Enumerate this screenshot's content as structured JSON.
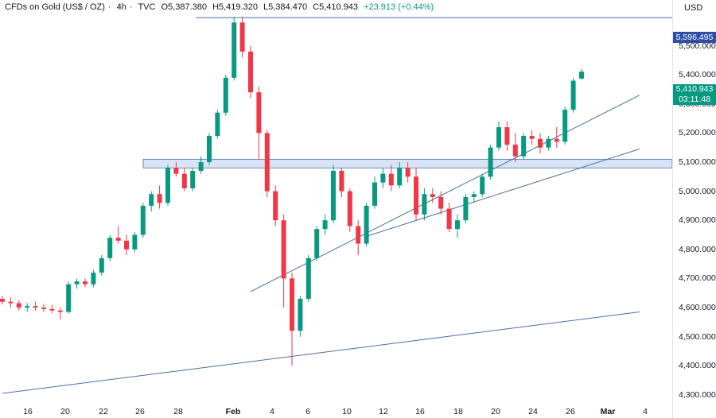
{
  "header": {
    "symbol": "CFDs on Gold (US$ / OZ)",
    "interval": "4h",
    "source": "TVC",
    "open": "O5,387.380",
    "high": "H5,419.320",
    "low": "L5,384.470",
    "close": "C5,410.943",
    "change": "+23.913 (+0.44%)"
  },
  "currency": "USD",
  "colors": {
    "up": "#089981",
    "down": "#f23645",
    "lines": "#4a6fa5",
    "zone": "#cfdcf5",
    "badge_level": "#2f4ea8",
    "badge_price": "#089981"
  },
  "badges": {
    "level_price": "5,596.495",
    "last_price": "5,410.943",
    "countdown": "03:11:48"
  },
  "chart_data": {
    "type": "candlestick",
    "y_ticks": [
      "5,500.000",
      "5,400.000",
      "5,300.000",
      "5,200.000",
      "5,100.000",
      "5,000.000",
      "4,900.000",
      "4,800.000",
      "4,700.000",
      "4,600.000",
      "4,500.000",
      "4,400.000",
      "4,300.000"
    ],
    "ylim": [
      4275,
      5630
    ],
    "x_ticks": [
      "16",
      "20",
      "22",
      "26",
      "28",
      "Feb",
      "4",
      "6",
      "10",
      "12",
      "16",
      "18",
      "20",
      "24",
      "26",
      "Mar",
      "4"
    ],
    "resistance_level": 5596.495,
    "support_zone": [
      5080,
      5110
    ],
    "trendlines": [
      {
        "name": "",
        "from": [
          0,
          4305
        ],
        "to": [
          72,
          4585
        ]
      },
      {
        "name": "",
        "from": [
          30,
          4655
        ],
        "to": [
          72,
          5330
        ]
      },
      {
        "name": "",
        "from": [
          44,
          4845
        ],
        "to": [
          72,
          5145
        ]
      }
    ],
    "candles": [
      [
        4630,
        4640,
        4610,
        4620
      ],
      [
        4620,
        4635,
        4600,
        4615
      ],
      [
        4615,
        4625,
        4590,
        4600
      ],
      [
        4600,
        4615,
        4585,
        4605
      ],
      [
        4605,
        4620,
        4590,
        4600
      ],
      [
        4600,
        4612,
        4585,
        4595
      ],
      [
        4595,
        4610,
        4580,
        4590
      ],
      [
        4590,
        4600,
        4560,
        4585
      ],
      [
        4585,
        4690,
        4580,
        4680
      ],
      [
        4680,
        4700,
        4665,
        4690
      ],
      [
        4690,
        4700,
        4670,
        4680
      ],
      [
        4680,
        4730,
        4670,
        4720
      ],
      [
        4720,
        4780,
        4710,
        4770
      ],
      [
        4770,
        4850,
        4760,
        4840
      ],
      [
        4840,
        4880,
        4820,
        4830
      ],
      [
        4830,
        4850,
        4780,
        4800
      ],
      [
        4800,
        4860,
        4790,
        4850
      ],
      [
        4850,
        4960,
        4840,
        4950
      ],
      [
        4950,
        5000,
        4930,
        4990
      ],
      [
        4990,
        5020,
        4940,
        4960
      ],
      [
        4960,
        5090,
        4950,
        5080
      ],
      [
        5080,
        5100,
        5050,
        5060
      ],
      [
        5060,
        5080,
        5000,
        5010
      ],
      [
        5010,
        5080,
        5000,
        5070
      ],
      [
        5070,
        5120,
        5060,
        5100
      ],
      [
        5100,
        5200,
        5090,
        5190
      ],
      [
        5190,
        5280,
        5180,
        5270
      ],
      [
        5270,
        5400,
        5260,
        5390
      ],
      [
        5390,
        5600,
        5380,
        5580
      ],
      [
        5580,
        5600,
        5460,
        5480
      ],
      [
        5480,
        5500,
        5320,
        5340
      ],
      [
        5340,
        5360,
        5110,
        5200
      ],
      [
        5200,
        5210,
        4980,
        5000
      ],
      [
        5000,
        5020,
        4880,
        4900
      ],
      [
        4900,
        4920,
        4600,
        4700
      ],
      [
        4700,
        4720,
        4400,
        4520
      ],
      [
        4520,
        4640,
        4500,
        4630
      ],
      [
        4630,
        4780,
        4620,
        4770
      ],
      [
        4770,
        4880,
        4760,
        4870
      ],
      [
        4870,
        4920,
        4850,
        4900
      ],
      [
        4900,
        5090,
        4890,
        5070
      ],
      [
        5070,
        5080,
        4980,
        5000
      ],
      [
        5000,
        5010,
        4860,
        4880
      ],
      [
        4880,
        4900,
        4780,
        4820
      ],
      [
        4820,
        4960,
        4810,
        4950
      ],
      [
        4950,
        5050,
        4940,
        5030
      ],
      [
        5030,
        5080,
        5010,
        5060
      ],
      [
        5060,
        5090,
        5000,
        5020
      ],
      [
        5020,
        5100,
        5010,
        5080
      ],
      [
        5080,
        5100,
        5030,
        5050
      ],
      [
        5050,
        5080,
        4900,
        4920
      ],
      [
        4920,
        5010,
        4900,
        4990
      ],
      [
        4990,
        5010,
        4960,
        4980
      ],
      [
        4980,
        5000,
        4920,
        4940
      ],
      [
        4940,
        4960,
        4860,
        4870
      ],
      [
        4870,
        4920,
        4840,
        4900
      ],
      [
        4900,
        4990,
        4890,
        4980
      ],
      [
        4980,
        5000,
        4960,
        4990
      ],
      [
        4990,
        5060,
        4980,
        5050
      ],
      [
        5050,
        5160,
        5040,
        5150
      ],
      [
        5150,
        5240,
        5140,
        5220
      ],
      [
        5220,
        5240,
        5140,
        5160
      ],
      [
        5160,
        5200,
        5100,
        5120
      ],
      [
        5120,
        5200,
        5110,
        5190
      ],
      [
        5190,
        5210,
        5160,
        5180
      ],
      [
        5180,
        5200,
        5130,
        5150
      ],
      [
        5150,
        5190,
        5140,
        5180
      ],
      [
        5180,
        5220,
        5150,
        5170
      ],
      [
        5170,
        5290,
        5160,
        5280
      ],
      [
        5280,
        5390,
        5270,
        5380
      ],
      [
        5387.38,
        5419.32,
        5384.47,
        5410.943
      ]
    ]
  }
}
